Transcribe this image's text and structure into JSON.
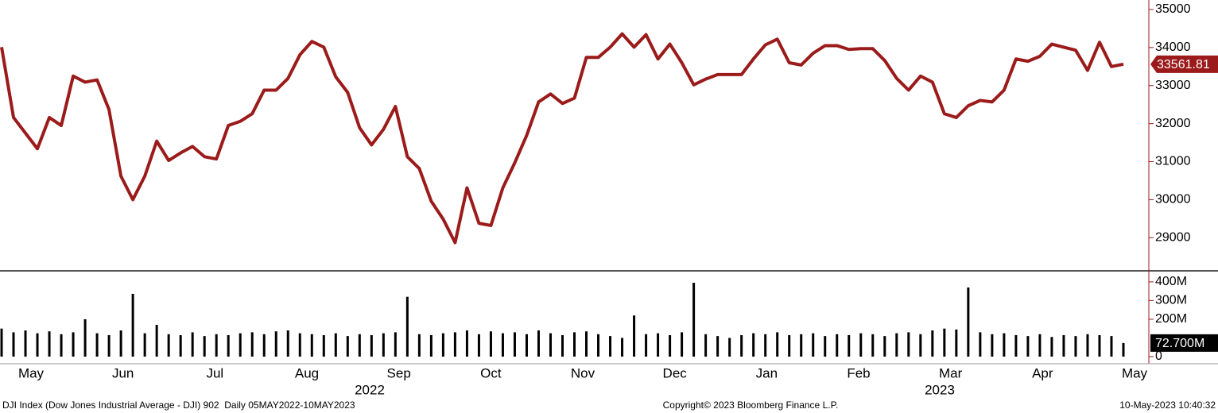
{
  "chart_data": [
    {
      "type": "line",
      "series": [
        {
          "name": "DJI Index",
          "color": "#9b1b1b",
          "values": [
            34010,
            32160,
            31750,
            31340,
            32160,
            31950,
            33250,
            33090,
            33150,
            32370,
            30620,
            30000,
            30620,
            31540,
            31030,
            31230,
            31400,
            31130,
            31070,
            31950,
            32060,
            32260,
            32880,
            32880,
            33190,
            33810,
            34160,
            34010,
            33230,
            32820,
            31890,
            31440,
            31850,
            32450,
            31130,
            30820,
            29960,
            29490,
            28870,
            30310,
            29380,
            29320,
            30310,
            30970,
            31690,
            32570,
            32780,
            32530,
            32670,
            33740,
            33740,
            34010,
            34360,
            34010,
            34340,
            33700,
            34090,
            33600,
            33020,
            33170,
            33290,
            33290,
            33290,
            33700,
            34070,
            34220,
            33600,
            33540,
            33850,
            34050,
            34050,
            33950,
            33970,
            33970,
            33660,
            33190,
            32880,
            33250,
            33090,
            32260,
            32160,
            32470,
            32610,
            32570,
            32880,
            33700,
            33640,
            33770,
            34090,
            34010,
            33930,
            33400,
            34140,
            33500,
            33561.81
          ]
        }
      ],
      "ylim": [
        28150,
        35250
      ],
      "yticks": [
        29000,
        30000,
        31000,
        32000,
        33000,
        34000,
        35000
      ]
    },
    {
      "type": "bar",
      "series": [
        {
          "name": "Volume",
          "color": "#000000",
          "values": [
            150,
            130,
            140,
            125,
            135,
            120,
            130,
            200,
            125,
            115,
            140,
            336,
            125,
            170,
            120,
            115,
            130,
            110,
            120,
            115,
            125,
            130,
            120,
            135,
            140,
            125,
            120,
            115,
            125,
            110,
            120,
            115,
            125,
            130,
            320,
            120,
            115,
            125,
            130,
            140,
            120,
            135,
            125,
            130,
            120,
            140,
            125,
            115,
            130,
            135,
            120,
            110,
            100,
            220,
            120,
            125,
            115,
            130,
            395,
            120,
            110,
            100,
            115,
            125,
            120,
            130,
            115,
            120,
            125,
            110,
            120,
            115,
            125,
            120,
            110,
            125,
            130,
            120,
            140,
            150,
            145,
            370,
            130,
            120,
            125,
            115,
            110,
            120,
            105,
            115,
            110,
            120,
            115,
            110,
            72.7
          ]
        }
      ],
      "last_value_label": "72.700M",
      "ylim": [
        0,
        442
      ],
      "yticks": [
        0,
        {
          "value": 200,
          "label": "200M"
        },
        {
          "value": 300,
          "label": "300M"
        },
        {
          "value": 400,
          "label": "400M"
        }
      ]
    }
  ],
  "x_axis": {
    "months": [
      "May",
      "Jun",
      "Jul",
      "Aug",
      "Sep",
      "Oct",
      "Nov",
      "Dec",
      "Jan",
      "Feb",
      "Mar",
      "Apr",
      "May"
    ],
    "years": [
      "2022",
      "2023"
    ]
  },
  "footer": {
    "left": "DJI Index (Dow Jones Industrial Average - DJI) 902  Daily 05MAY2022-10MAY2023",
    "center": "Copyright© 2023 Bloomberg Finance L.P.",
    "right": "10-May-2023 10:40:32"
  }
}
